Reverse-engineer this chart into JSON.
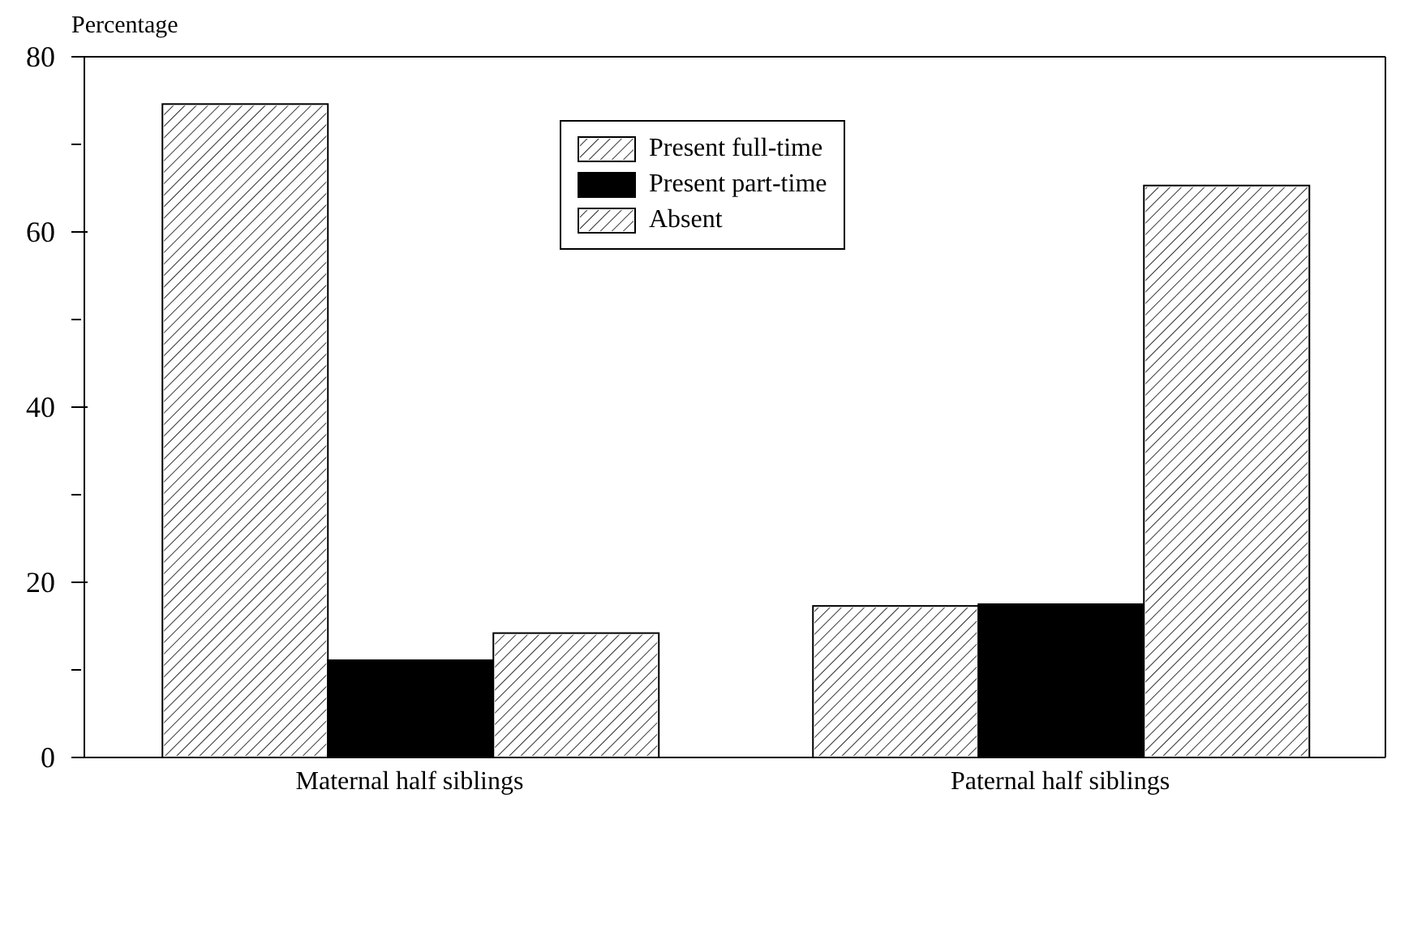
{
  "chart_data": {
    "type": "bar",
    "ylabel": "Percentage",
    "categories": [
      "Maternal half siblings",
      "Paternal half siblings"
    ],
    "series": [
      {
        "name": "Present full-time",
        "color": "#ffffff",
        "values": [
          74.6,
          17.3
        ]
      },
      {
        "name": "Present part-time",
        "color": "#000000",
        "values": [
          11.1,
          17.5
        ]
      },
      {
        "name": "Absent",
        "color": "#ffffff",
        "values": [
          14.2,
          65.3
        ]
      }
    ],
    "ylim": [
      0,
      80
    ],
    "yticks": [
      0,
      {
        "value": 10,
        "label": null
      },
      20,
      {
        "value": 30,
        "label": null
      },
      40,
      {
        "value": 50,
        "label": null
      },
      60,
      {
        "value": 70,
        "label": null
      },
      80
    ],
    "grid": false,
    "legend": "top"
  }
}
